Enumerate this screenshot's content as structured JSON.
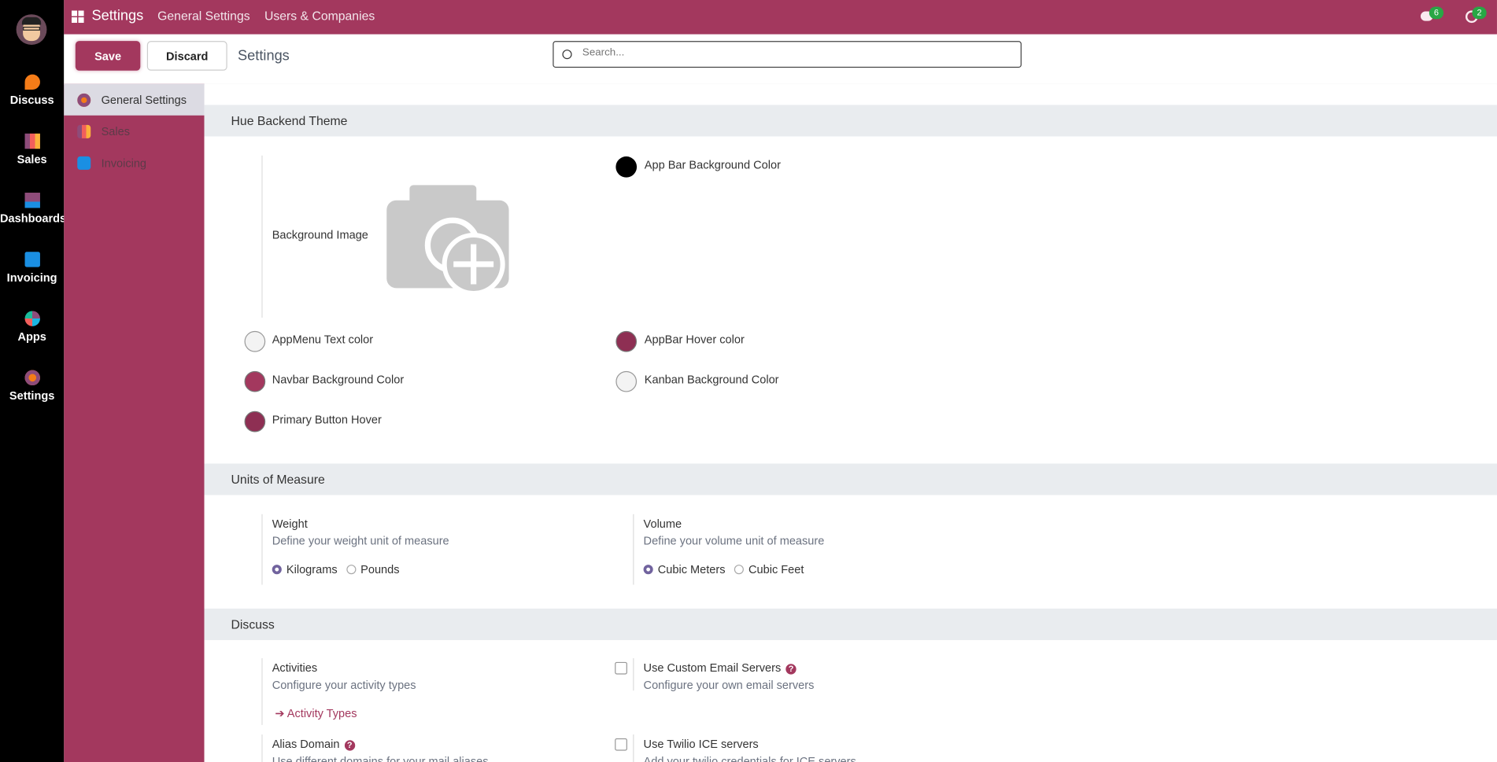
{
  "app_sidebar": {
    "items": [
      {
        "label": "Discuss",
        "icon": "discuss-icon"
      },
      {
        "label": "Sales",
        "icon": "sales-icon"
      },
      {
        "label": "Dashboards",
        "icon": "dashboards-icon"
      },
      {
        "label": "Invoicing",
        "icon": "invoicing-icon"
      },
      {
        "label": "Apps",
        "icon": "apps-icon"
      },
      {
        "label": "Settings",
        "icon": "settings-icon"
      }
    ]
  },
  "topbar": {
    "title": "Settings",
    "menu": [
      "General Settings",
      "Users & Companies"
    ],
    "messages_count": "6",
    "activities_count": "2"
  },
  "control": {
    "save": "Save",
    "discard": "Discard",
    "breadcrumb": "Settings",
    "search_placeholder": "Search..."
  },
  "settings_sidebar": {
    "items": [
      {
        "label": "General Settings",
        "active": true
      },
      {
        "label": "Sales"
      },
      {
        "label": "Invoicing"
      }
    ]
  },
  "sections": {
    "theme": {
      "title": "Hue Backend Theme",
      "background_image": "Background Image",
      "colors": [
        {
          "label": "App Bar Background Color",
          "color": "#000000"
        },
        {
          "label": "AppMenu Text color",
          "color": "#f3f3f3"
        },
        {
          "label": "AppBar Hover color",
          "color": "#8e2f53"
        },
        {
          "label": "Navbar Background Color",
          "color": "#a3385e"
        },
        {
          "label": "Kanban Background Color",
          "color": "#f3f3f3"
        },
        {
          "label": "Primary Button Hover",
          "color": "#8e2f53"
        }
      ]
    },
    "uom": {
      "title": "Units of Measure",
      "weight": {
        "label": "Weight",
        "desc": "Define your weight unit of measure",
        "options": [
          "Kilograms",
          "Pounds"
        ],
        "selected": "Kilograms"
      },
      "volume": {
        "label": "Volume",
        "desc": "Define your volume unit of measure",
        "options": [
          "Cubic Meters",
          "Cubic Feet"
        ],
        "selected": "Cubic Meters"
      }
    },
    "discuss": {
      "title": "Discuss",
      "activities": {
        "label": "Activities",
        "desc": "Configure your activity types",
        "link": "Activity Types"
      },
      "email": {
        "label": "Use Custom Email Servers",
        "desc": "Configure your own email servers",
        "checked": false
      },
      "alias": {
        "label": "Alias Domain",
        "desc": "Use different domains for your mail aliases"
      },
      "twilio": {
        "label": "Use Twilio ICE servers",
        "desc": "Add your twilio credentials for ICE servers",
        "checked": false
      }
    }
  }
}
